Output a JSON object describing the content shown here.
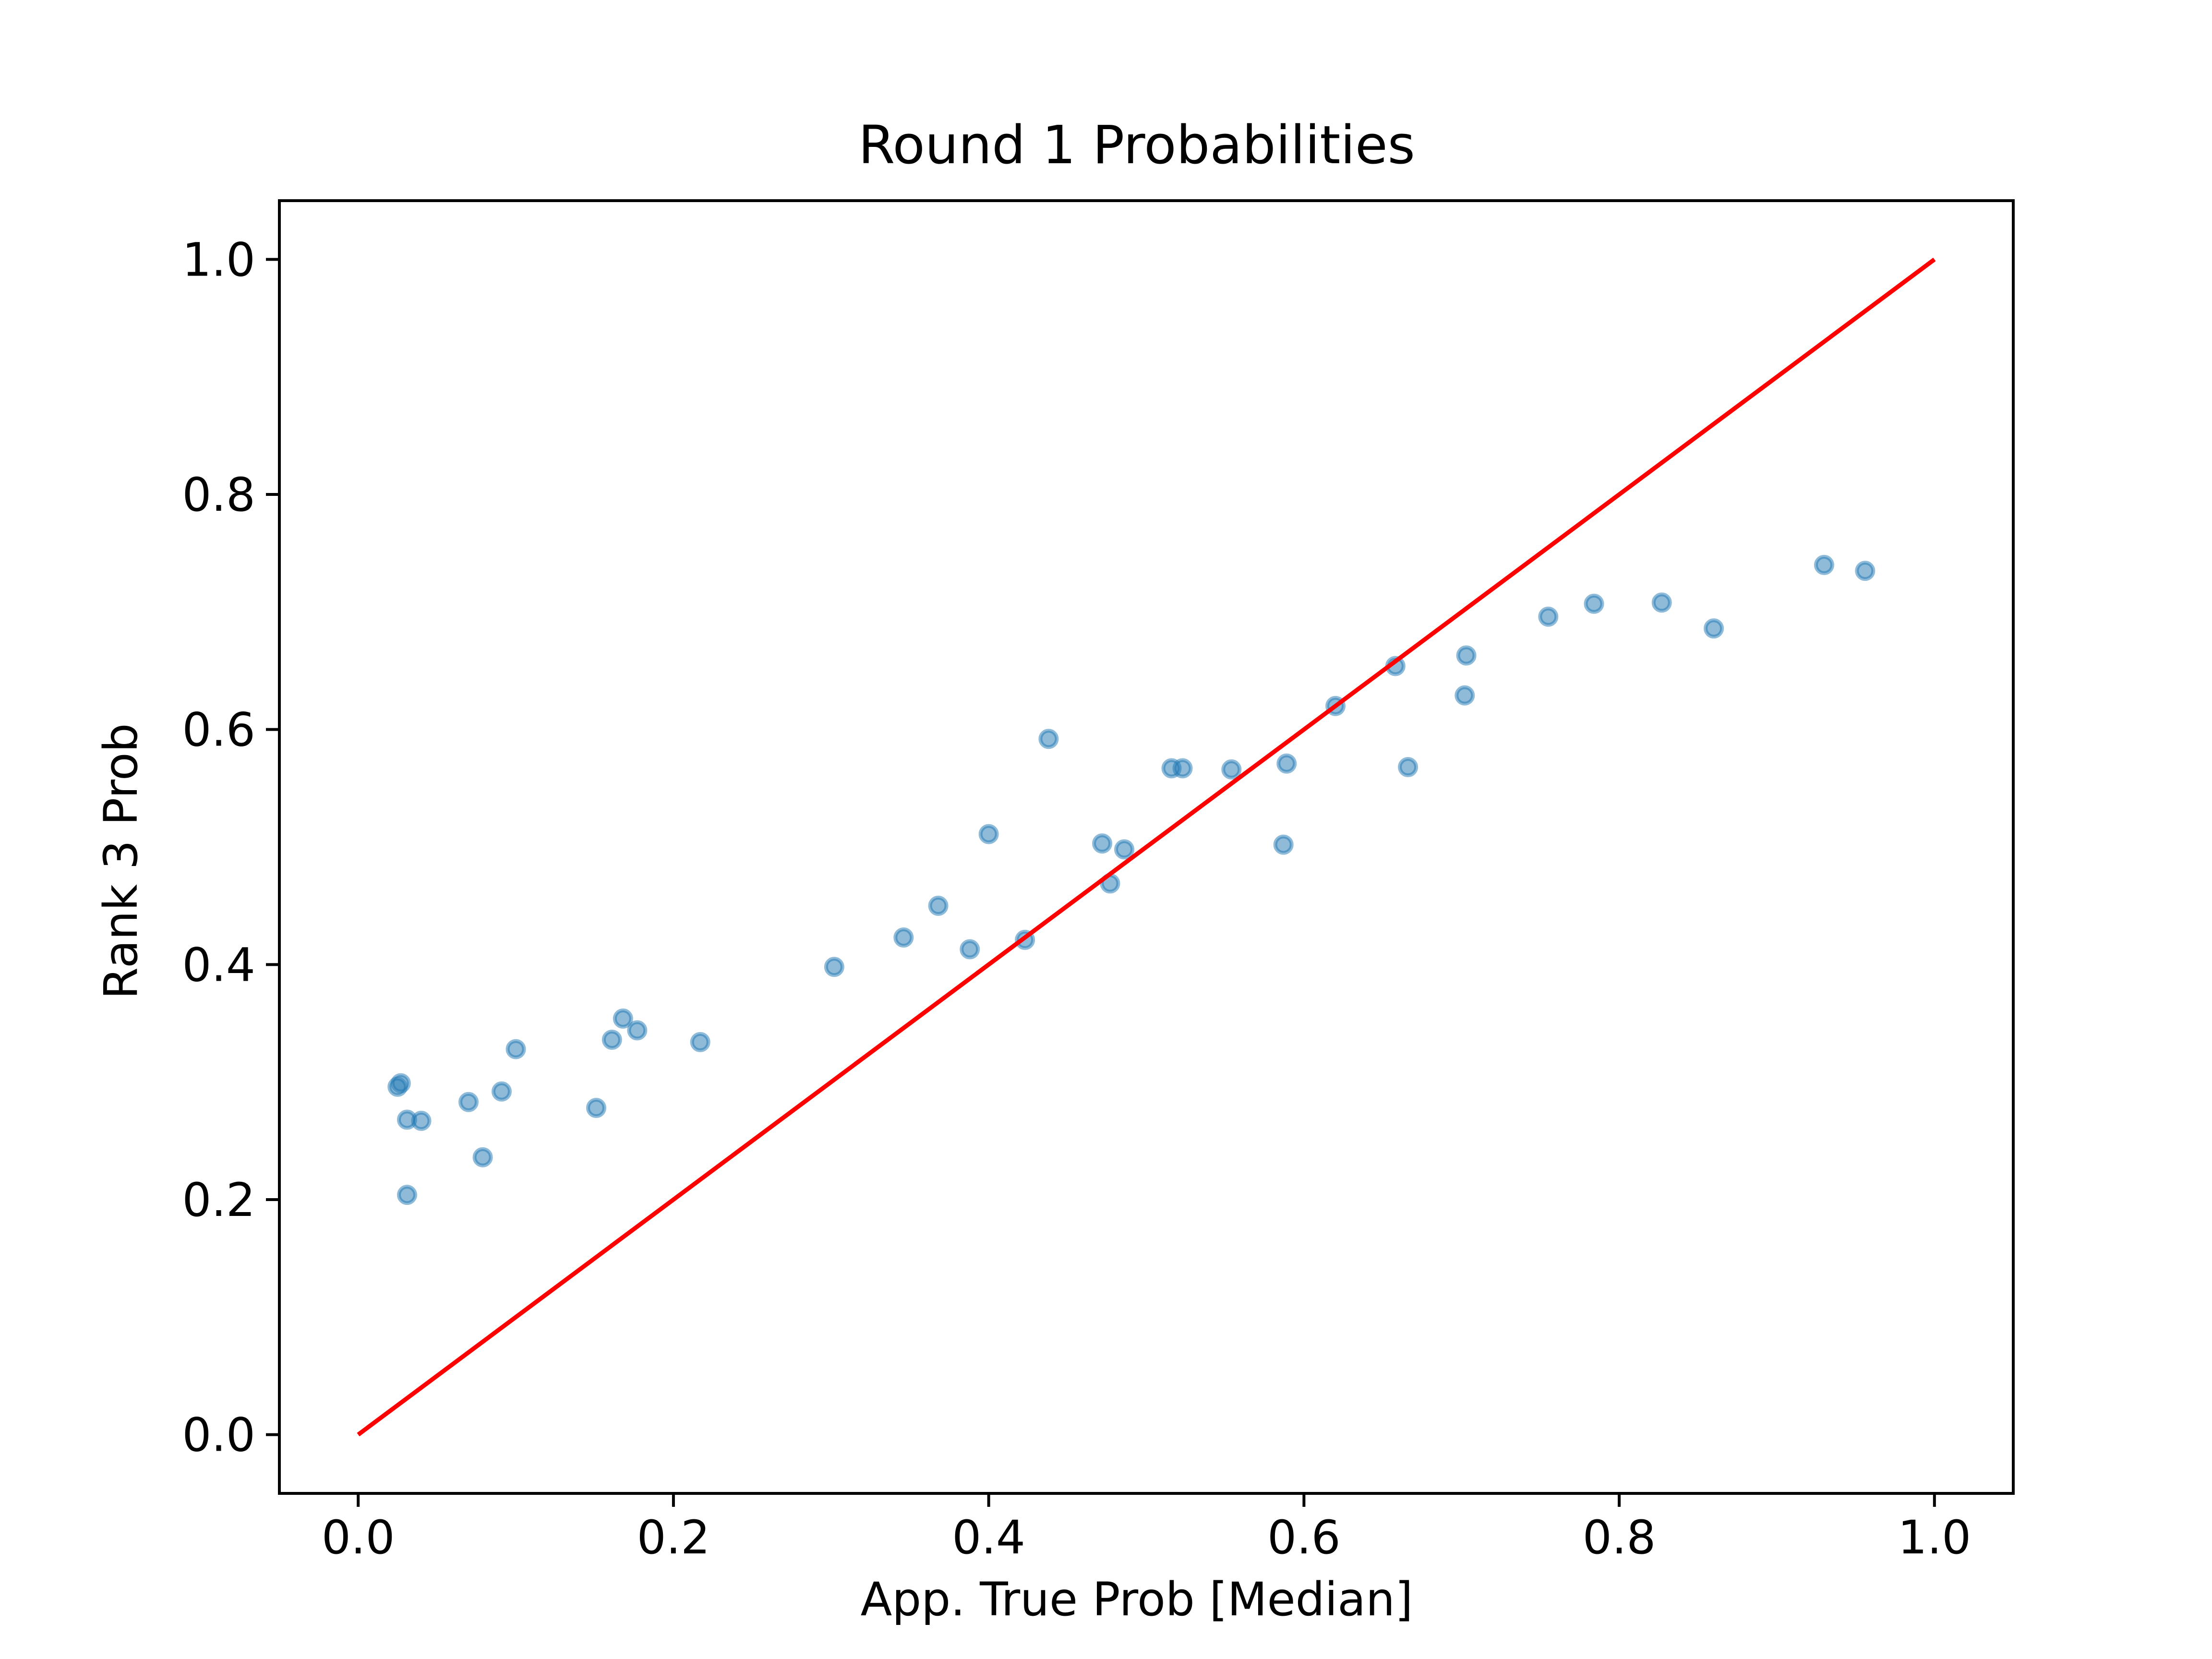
{
  "colors": {
    "background": "#ffffff",
    "points": "#1f77b4",
    "reference_line": "#ff0000",
    "axes": "#000000"
  },
  "chart_data": {
    "type": "scatter",
    "title": "Round 1 Probabilities",
    "xlabel": "App. True Prob [Median]",
    "ylabel": "Rank 3 Prob",
    "xlim": [
      -0.05,
      1.05
    ],
    "ylim": [
      -0.05,
      1.05
    ],
    "xticks": [
      "0.0",
      "0.2",
      "0.4",
      "0.6",
      "0.8",
      "1.0"
    ],
    "yticks": [
      "0.0",
      "0.2",
      "0.4",
      "0.6",
      "0.8",
      "1.0"
    ],
    "grid": false,
    "legend": "none",
    "series": [
      {
        "type": "scatter",
        "marker_alpha": 0.5,
        "x": [
          0.025,
          0.027,
          0.031,
          0.031,
          0.04,
          0.07,
          0.079,
          0.091,
          0.1,
          0.151,
          0.161,
          0.168,
          0.177,
          0.217,
          0.302,
          0.346,
          0.368,
          0.388,
          0.4,
          0.423,
          0.438,
          0.472,
          0.477,
          0.486,
          0.516,
          0.523,
          0.554,
          0.587,
          0.589,
          0.62,
          0.658,
          0.666,
          0.702,
          0.703,
          0.755,
          0.784,
          0.827,
          0.86,
          0.93,
          0.956
        ],
        "y": [
          0.296,
          0.299,
          0.268,
          0.204,
          0.267,
          0.283,
          0.236,
          0.292,
          0.328,
          0.278,
          0.336,
          0.354,
          0.344,
          0.334,
          0.398,
          0.423,
          0.45,
          0.413,
          0.511,
          0.421,
          0.592,
          0.503,
          0.469,
          0.498,
          0.567,
          0.567,
          0.566,
          0.502,
          0.571,
          0.62,
          0.654,
          0.568,
          0.629,
          0.663,
          0.696,
          0.707,
          0.708,
          0.686,
          0.74,
          0.735
        ]
      },
      {
        "type": "line",
        "x": [
          0.0,
          1.0
        ],
        "y": [
          0.0,
          1.0
        ]
      }
    ]
  }
}
